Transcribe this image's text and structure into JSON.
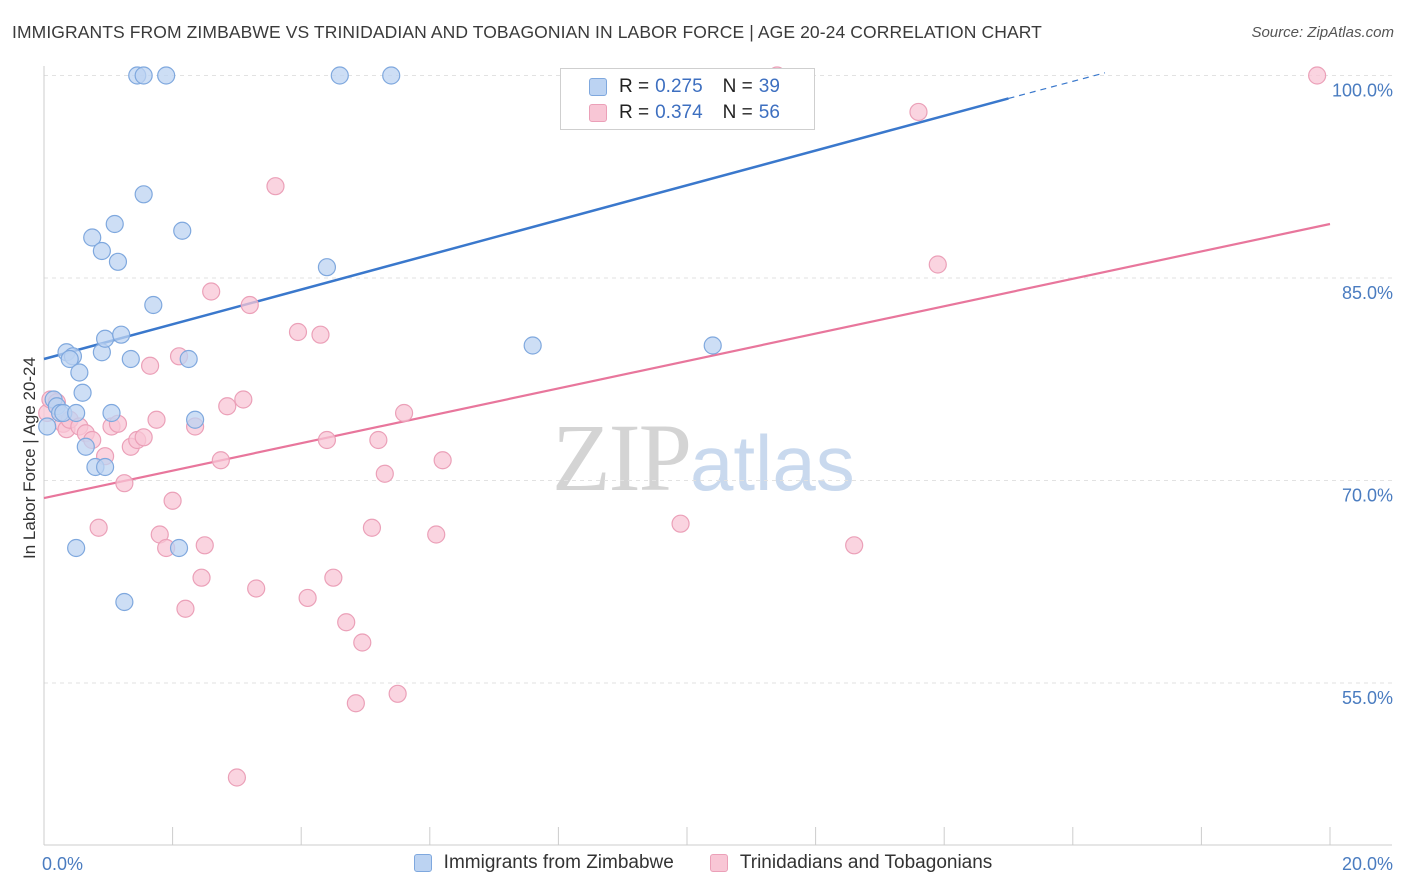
{
  "header": {
    "title": "IMMIGRANTS FROM ZIMBABWE VS TRINIDADIAN AND TOBAGONIAN IN LABOR FORCE | AGE 20-24 CORRELATION CHART",
    "source": "Source: ZipAtlas.com"
  },
  "watermark": {
    "zip": "ZIP",
    "atlas": "atlas"
  },
  "legend": {
    "r_label": "R =",
    "n_label": "N =",
    "rows": [
      {
        "r": "0.275",
        "n": "39"
      },
      {
        "r": "0.374",
        "n": "56"
      }
    ]
  },
  "colors": {
    "blue_fill": "#bcd3f2",
    "blue_stroke": "#7fa8de",
    "blue_line": "#3a78cc",
    "pink_fill": "#f8c6d5",
    "pink_stroke": "#eba0b8",
    "pink_line": "#e8769c"
  },
  "chart_data": {
    "type": "scatter",
    "title": "IMMIGRANTS FROM ZIMBABWE VS TRINIDADIAN AND TOBAGONIAN IN LABOR FORCE | AGE 20-24 CORRELATION CHART",
    "xlabel": "",
    "ylabel": "In Labor Force | Age 20-24",
    "xlim": [
      0,
      20
    ],
    "ylim": [
      43,
      101
    ],
    "x_tick_labels": [
      "0.0%",
      "20.0%"
    ],
    "y_ticks": [
      55,
      70,
      85,
      100
    ],
    "y_tick_labels": [
      "55.0%",
      "70.0%",
      "85.0%",
      "100.0%"
    ],
    "grid": true,
    "legend_position": "top-center",
    "series": [
      {
        "name": "Immigrants from Zimbabwe",
        "r": 0.275,
        "n": 39,
        "trend": {
          "x0": 0,
          "y0": 79.0,
          "x1": 15.0,
          "y1": 98.3,
          "dashed_to_x": 16.5,
          "dashed_to_y": 100.2
        },
        "points": [
          [
            0.05,
            74.0
          ],
          [
            0.15,
            76.0
          ],
          [
            0.2,
            75.5
          ],
          [
            0.25,
            75.0
          ],
          [
            0.3,
            75.0
          ],
          [
            0.35,
            79.5
          ],
          [
            0.45,
            79.2
          ],
          [
            0.4,
            79.0
          ],
          [
            0.5,
            75.0
          ],
          [
            0.55,
            78.0
          ],
          [
            0.6,
            76.5
          ],
          [
            0.65,
            72.5
          ],
          [
            0.75,
            88.0
          ],
          [
            0.8,
            71.0
          ],
          [
            0.9,
            87.0
          ],
          [
            0.9,
            79.5
          ],
          [
            0.95,
            71.0
          ],
          [
            0.95,
            80.5
          ],
          [
            1.05,
            75.0
          ],
          [
            1.1,
            89.0
          ],
          [
            1.15,
            86.2
          ],
          [
            1.2,
            80.8
          ],
          [
            1.25,
            61.0
          ],
          [
            1.35,
            79.0
          ],
          [
            1.45,
            100.0
          ],
          [
            1.55,
            91.2
          ],
          [
            1.55,
            100.0
          ],
          [
            1.7,
            83.0
          ],
          [
            1.9,
            100.0
          ],
          [
            2.15,
            88.5
          ],
          [
            2.25,
            79.0
          ],
          [
            2.35,
            74.5
          ],
          [
            2.1,
            65.0
          ],
          [
            0.5,
            65.0
          ],
          [
            4.4,
            85.8
          ],
          [
            4.6,
            100.0
          ],
          [
            5.4,
            100.0
          ],
          [
            7.6,
            80.0
          ],
          [
            10.4,
            80.0
          ]
        ]
      },
      {
        "name": "Trinidadians and Tobagonians",
        "r": 0.374,
        "n": 56,
        "trend": {
          "x0": 0,
          "y0": 68.7,
          "x1": 20.0,
          "y1": 89.0
        },
        "points": [
          [
            0.05,
            75.0
          ],
          [
            0.1,
            76.0
          ],
          [
            0.2,
            75.8
          ],
          [
            0.3,
            74.2
          ],
          [
            0.35,
            73.8
          ],
          [
            0.4,
            74.5
          ],
          [
            0.55,
            74.0
          ],
          [
            0.65,
            73.5
          ],
          [
            0.75,
            73.0
          ],
          [
            0.85,
            66.5
          ],
          [
            0.95,
            71.8
          ],
          [
            1.05,
            74.0
          ],
          [
            1.15,
            74.2
          ],
          [
            1.25,
            69.8
          ],
          [
            1.35,
            72.5
          ],
          [
            1.45,
            73.0
          ],
          [
            1.55,
            73.2
          ],
          [
            1.65,
            78.5
          ],
          [
            1.75,
            74.5
          ],
          [
            1.8,
            66.0
          ],
          [
            1.9,
            65.0
          ],
          [
            2.0,
            68.5
          ],
          [
            2.1,
            79.2
          ],
          [
            2.2,
            60.5
          ],
          [
            2.35,
            74.0
          ],
          [
            2.45,
            62.8
          ],
          [
            2.5,
            65.2
          ],
          [
            2.6,
            84.0
          ],
          [
            2.75,
            71.5
          ],
          [
            2.85,
            75.5
          ],
          [
            3.0,
            48.0
          ],
          [
            3.1,
            76.0
          ],
          [
            3.2,
            83.0
          ],
          [
            3.3,
            62.0
          ],
          [
            3.6,
            91.8
          ],
          [
            3.95,
            81.0
          ],
          [
            4.1,
            61.3
          ],
          [
            4.3,
            80.8
          ],
          [
            4.4,
            73.0
          ],
          [
            4.5,
            62.8
          ],
          [
            4.7,
            59.5
          ],
          [
            4.85,
            53.5
          ],
          [
            4.95,
            58.0
          ],
          [
            5.1,
            66.5
          ],
          [
            5.2,
            73.0
          ],
          [
            5.3,
            70.5
          ],
          [
            5.5,
            54.2
          ],
          [
            5.6,
            75.0
          ],
          [
            6.1,
            66.0
          ],
          [
            6.2,
            71.5
          ],
          [
            9.9,
            66.8
          ],
          [
            12.6,
            65.2
          ],
          [
            13.6,
            97.3
          ],
          [
            13.9,
            86.0
          ],
          [
            19.8,
            100.0
          ],
          [
            11.4,
            100.0
          ]
        ]
      }
    ]
  }
}
